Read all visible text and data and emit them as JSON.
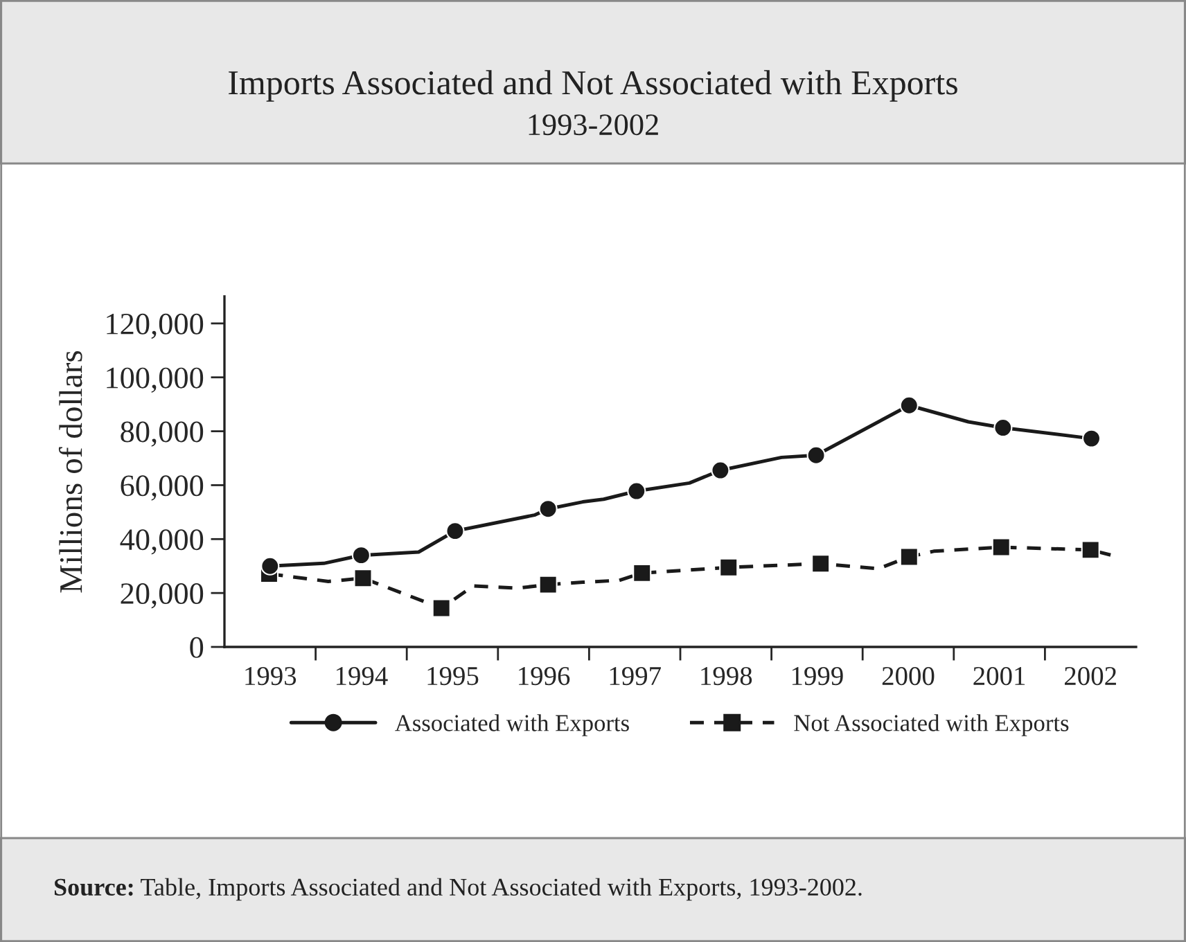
{
  "chart_data": {
    "type": "line",
    "title": "Imports Associated and Not Associated with Exports",
    "subtitle": "1993-2002",
    "ylabel": "Millions of dollars",
    "annotations": [
      "Source: Table, Imports Associated and Not Associated with Exports, 1993-2002."
    ],
    "xlim": [
      1992.5,
      2002.5
    ],
    "xticks": [
      {
        "value": 1993,
        "label": "1993"
      },
      {
        "value": 1994,
        "label": "1994"
      },
      {
        "value": 1995,
        "label": "1995"
      },
      {
        "value": 1996,
        "label": "1996"
      },
      {
        "value": 1997,
        "label": "1997"
      },
      {
        "value": 1998,
        "label": "1998"
      },
      {
        "value": 1999,
        "label": "1999"
      },
      {
        "value": 2000,
        "label": "2000"
      },
      {
        "value": 2001,
        "label": "2001"
      },
      {
        "value": 2002,
        "label": "2002"
      },
      {
        "value": 1993.5,
        "label": null
      },
      {
        "value": 1994.5,
        "label": null
      },
      {
        "value": 1995.5,
        "label": null
      },
      {
        "value": 1996.5,
        "label": null
      },
      {
        "value": 1997.5,
        "label": null
      },
      {
        "value": 1998.5,
        "label": null
      },
      {
        "value": 1999.5,
        "label": null
      },
      {
        "value": 2000.5,
        "label": null
      },
      {
        "value": 2001.5,
        "label": null
      }
    ],
    "ylim": [
      0,
      130000
    ],
    "yticks": [
      {
        "value": 0,
        "label": "0"
      },
      {
        "value": 20000,
        "label": "20,000"
      },
      {
        "value": 40000,
        "label": "40,000"
      },
      {
        "value": 60000,
        "label": "60,000"
      },
      {
        "value": 80000,
        "label": "80,000"
      },
      {
        "value": 100000,
        "label": "100,000"
      },
      {
        "value": 120000,
        "label": "120,000"
      }
    ],
    "grid": false,
    "legend": "bottom",
    "series": [
      {
        "name": "Associated with Exports",
        "color": "#1a1a1a",
        "marker": "circle",
        "line_style": "solid",
        "x": [
          1993.0,
          1993.59,
          1994.0,
          1994.63,
          1995.03,
          1995.9,
          1996.05,
          1996.43,
          1996.66,
          1997.02,
          1997.6,
          1997.94,
          1998.61,
          1998.99,
          2000.01,
          2000.66,
          2001.04,
          2002.01
        ],
        "values": [
          30000,
          31000,
          34000,
          35200,
          43000,
          48900,
          51200,
          53800,
          54800,
          57800,
          60800,
          65500,
          70300,
          71100,
          89600,
          83500,
          81300,
          77300
        ]
      },
      {
        "name": "Not Associated with Exports",
        "color": "#1a1a1a",
        "marker": "square",
        "line_style": "dashed",
        "x": [
          1992.99,
          1993.64,
          1994.02,
          1994.88,
          1995.23,
          1995.71,
          1996.05,
          1996.43,
          1996.83,
          1997.08,
          1998.03,
          1999.04,
          1999.67,
          2000.01,
          2000.28,
          2001.02,
          2002.0,
          2002.22
        ],
        "values": [
          27100,
          24300,
          25500,
          14400,
          22600,
          21800,
          23100,
          24000,
          24700,
          27400,
          29500,
          30900,
          29000,
          33400,
          35500,
          37000,
          36000,
          34100
        ]
      }
    ]
  }
}
